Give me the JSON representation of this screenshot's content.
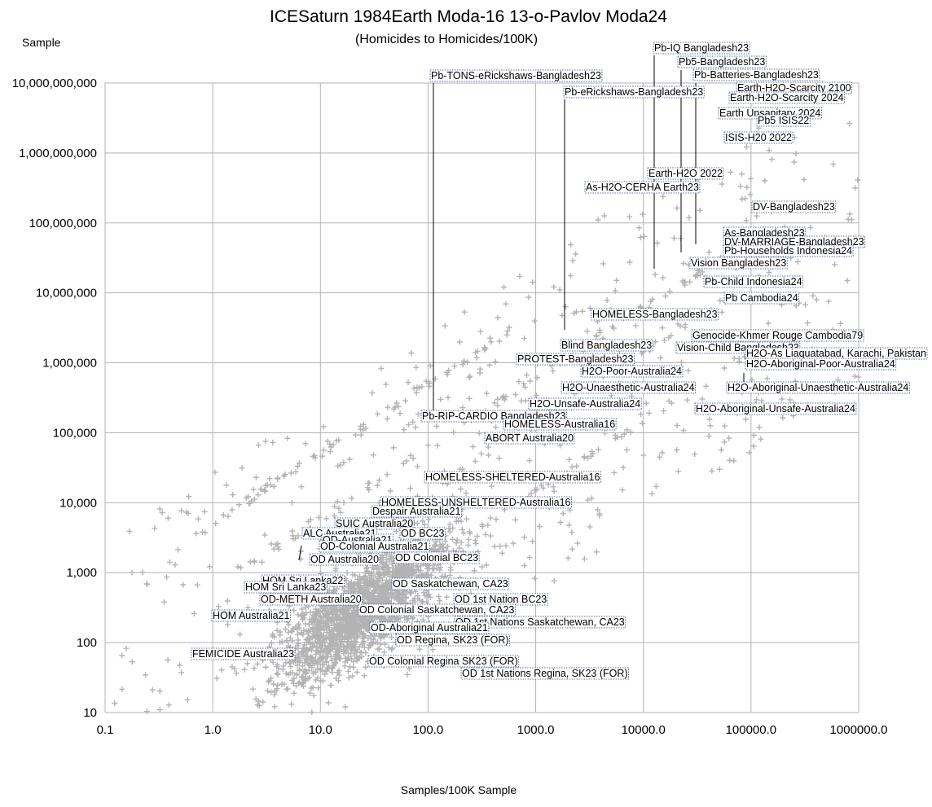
{
  "chart_data": {
    "type": "scatter",
    "title": "ICESaturn 1984Earth Moda-16 13-o-Pavlov Moda24",
    "subtitle": "(Homicides to Homicides/100K)",
    "xlabel": "Samples/100K Sample",
    "ylabel": "Sample",
    "x_scale": "log",
    "y_scale": "log",
    "xlim": [
      0.1,
      1000000
    ],
    "ylim": [
      10,
      10000000000
    ],
    "grid": true,
    "marker": "plus",
    "marker_color": "#b3b3b3",
    "x_ticks": [
      "0.1",
      "1.0",
      "10.0",
      "100.0",
      "1000.0",
      "10000.0",
      "100000.0",
      "1000000.0"
    ],
    "y_ticks": [
      "10",
      "100",
      "1,000",
      "10,000",
      "100,000",
      "1,000,000",
      "10,000,000",
      "100,000,000",
      "1,000,000,000",
      "10,000,000,000"
    ],
    "annotations": [
      {
        "text": "Pb-IQ Bangladesh23",
        "x": 12000,
        "y": 20000000
      },
      {
        "text": "Pb5-Bangladesh23",
        "x": 22000,
        "y": 40000000
      },
      {
        "text": "Pb-Batteries-Bangladesh23",
        "x": 30000,
        "y": 50000000
      },
      {
        "text": "Pb-TONS-eRickshaws-Bangladesh23",
        "x": 110,
        "y": 9000000
      },
      {
        "text": "Pb-eRickshaws-Bangladesh23",
        "x": 1800,
        "y": 3000000
      },
      {
        "text": "Earth-H2O-Scarcity 2100",
        "x": 300000,
        "y": 5000000000
      },
      {
        "text": "Earth-H2O-Scarcity 2024",
        "x": 200000,
        "y": 4000000000
      },
      {
        "text": "Earth Unsanitary 2024",
        "x": 100000,
        "y": 2500000000
      },
      {
        "text": "Pb5 ISIS22",
        "x": 150000,
        "y": 2000000000
      },
      {
        "text": "ISIS-H20 2022",
        "x": 100000,
        "y": 1000000000
      },
      {
        "text": "Earth-H2O 2022",
        "x": 20000,
        "y": 300000000
      },
      {
        "text": "As-H2O-CERHA Earth23",
        "x": 15000,
        "y": 200000000
      },
      {
        "text": "DV-Bangladesh23",
        "x": 200000,
        "y": 150000000
      },
      {
        "text": "As-Bangladesh23",
        "x": 100000,
        "y": 60000000
      },
      {
        "text": "DV-MARRIAGE-Bangladesh23",
        "x": 120000,
        "y": 45000000
      },
      {
        "text": "Pb-Households Indonesia24",
        "x": 150000,
        "y": 35000000
      },
      {
        "text": "Vision Bangladesh23",
        "x": 50000,
        "y": 20000000
      },
      {
        "text": "Pb-Child Indonesia24",
        "x": 80000,
        "y": 10000000
      },
      {
        "text": "Pb Cambodia24",
        "x": 100000,
        "y": 7000000
      },
      {
        "text": "HOMELESS-Bangladesh23",
        "x": 10000,
        "y": 3000000
      },
      {
        "text": "Genocide-Khmer Rouge Cambodia79",
        "x": 150000,
        "y": 1500000
      },
      {
        "text": "Blind Bangladesh23",
        "x": 5000,
        "y": 1200000
      },
      {
        "text": "Vision-Child Bangladesh23",
        "x": 80000,
        "y": 1100000
      },
      {
        "text": "H2O-As Liaquatabad, Karachi, Pakistan",
        "x": 300000,
        "y": 900000
      },
      {
        "text": "PROTEST-Bangladesh23",
        "x": 3000,
        "y": 800000
      },
      {
        "text": "H2O-Aboriginal-Poor-Australia24",
        "x": 90000,
        "y": 500000
      },
      {
        "text": "H2O-Poor-Australia24",
        "x": 10000,
        "y": 600000
      },
      {
        "text": "H2O-Unaesthetic-Australia24",
        "x": 5000,
        "y": 400000
      },
      {
        "text": "H2O-Aboriginal-Unaesthetic-Australia24",
        "x": 100000,
        "y": 400000
      },
      {
        "text": "H2O-Unsafe-Australia24",
        "x": 8000,
        "y": 200000
      },
      {
        "text": "H2O-Aboriginal-Unsafe-Australia24",
        "x": 100000,
        "y": 200000
      },
      {
        "text": "Pb-RIP-CARDIO Bangladesh23",
        "x": 110,
        "y": 200000
      },
      {
        "text": "HOMELESS-Australia16",
        "x": 2000,
        "y": 100000
      },
      {
        "text": "ABORT Australia20",
        "x": 1000,
        "y": 60000
      },
      {
        "text": "HOMELESS-SHELTERED-Australia16",
        "x": 2000,
        "y": 20000
      },
      {
        "text": "HOMELESS-UNSHELTERED-Australia16",
        "x": 1000,
        "y": 10000
      },
      {
        "text": "Despair Australia21",
        "x": 400,
        "y": 6000
      },
      {
        "text": "SUIC Australia20",
        "x": 200,
        "y": 4000
      },
      {
        "text": "ALC Australia21",
        "x": 6,
        "y": 1500
      },
      {
        "text": "OD-Australia21",
        "x": 50,
        "y": 2500
      },
      {
        "text": "OD BC23",
        "x": 200,
        "y": 2500
      },
      {
        "text": "OD-Colonial Australia21",
        "x": 60,
        "y": 2000
      },
      {
        "text": "OD Australia20",
        "x": 30,
        "y": 1500
      },
      {
        "text": "OD Colonial BC23",
        "x": 200,
        "y": 1500
      },
      {
        "text": "HOM Sri Lanka22",
        "x": 6,
        "y": 600
      },
      {
        "text": "HOM Sri Lanka23",
        "x": 6,
        "y": 500
      },
      {
        "text": "OD Saskatchewan, CA23",
        "x": 200,
        "y": 600
      },
      {
        "text": "OD-METH Australia20",
        "x": 20,
        "y": 400
      },
      {
        "text": "OD 1st Nation BC23",
        "x": 500,
        "y": 400
      },
      {
        "text": "OD Colonial Saskatchewan, CA23",
        "x": 200,
        "y": 300
      },
      {
        "text": "HOM Australia21",
        "x": 3,
        "y": 200
      },
      {
        "text": "OD 1st Nations Saskatchewan, CA23",
        "x": 500,
        "y": 200
      },
      {
        "text": "OD-Aboriginal Australia21",
        "x": 100,
        "y": 150
      },
      {
        "text": "OD Regina, SK23 (FOR)",
        "x": 300,
        "y": 100
      },
      {
        "text": "FEMICIDE Australia23",
        "x": 2,
        "y": 60
      },
      {
        "text": "OD Colonial Regina SK23 (FOR)",
        "x": 300,
        "y": 50
      },
      {
        "text": "OD 1st Nations Regina, SK23 (FOR)",
        "x": 800,
        "y": 30
      }
    ],
    "band_series": [
      {
        "x_range": [
          0.8,
          600
        ],
        "ratio": 5000,
        "n": 70
      },
      {
        "x_range": [
          1.5,
          70000
        ],
        "ratio": 600,
        "n": 90
      },
      {
        "x_range": [
          60,
          900000
        ],
        "ratio": 140,
        "n": 60
      },
      {
        "x_range": [
          20,
          90000
        ],
        "ratio": 15,
        "n": 60
      }
    ],
    "cloud": {
      "n": 2000,
      "x_center": 25,
      "x_spread": 1.2,
      "ratio_center": 12,
      "ratio_spread": 1.0
    },
    "scatter_extra": {
      "n": 550,
      "x_range": [
        0.1,
        1000000
      ],
      "ratio_range": [
        0.5,
        30000
      ]
    }
  }
}
